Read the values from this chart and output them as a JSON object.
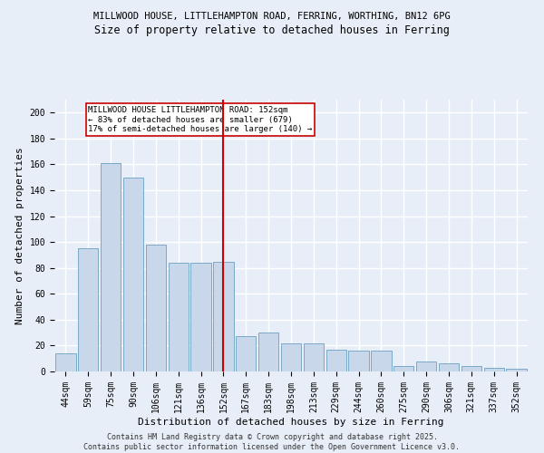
{
  "title1": "MILLWOOD HOUSE, LITTLEHAMPTON ROAD, FERRING, WORTHING, BN12 6PG",
  "title2": "Size of property relative to detached houses in Ferring",
  "xlabel": "Distribution of detached houses by size in Ferring",
  "ylabel": "Number of detached properties",
  "categories": [
    "44sqm",
    "59sqm",
    "75sqm",
    "90sqm",
    "106sqm",
    "121sqm",
    "136sqm",
    "152sqm",
    "167sqm",
    "183sqm",
    "198sqm",
    "213sqm",
    "229sqm",
    "244sqm",
    "260sqm",
    "275sqm",
    "290sqm",
    "306sqm",
    "321sqm",
    "337sqm",
    "352sqm"
  ],
  "values": [
    14,
    95,
    161,
    150,
    98,
    84,
    84,
    85,
    27,
    30,
    22,
    22,
    17,
    16,
    16,
    4,
    8,
    6,
    4,
    3,
    2
  ],
  "bar_color": "#c8d8ea",
  "bar_edge_color": "#7aaac8",
  "vline_x": 7,
  "vline_color": "#cc0000",
  "annotation_text": "MILLWOOD HOUSE LITTLEHAMPTON ROAD: 152sqm\n← 83% of detached houses are smaller (679)\n17% of semi-detached houses are larger (140) →",
  "annotation_box_color": "white",
  "annotation_box_edge": "#cc0000",
  "ylim": [
    0,
    210
  ],
  "yticks": [
    0,
    20,
    40,
    60,
    80,
    100,
    120,
    140,
    160,
    180,
    200
  ],
  "footer": "Contains HM Land Registry data © Crown copyright and database right 2025.\nContains public sector information licensed under the Open Government Licence v3.0.",
  "bg_color": "#e8eef8",
  "plot_bg_color": "#e8eef8",
  "title1_fontsize": 7.5,
  "title2_fontsize": 8.5,
  "xlabel_fontsize": 8,
  "ylabel_fontsize": 8,
  "tick_fontsize": 7,
  "ann_fontsize": 6.5,
  "footer_fontsize": 6
}
